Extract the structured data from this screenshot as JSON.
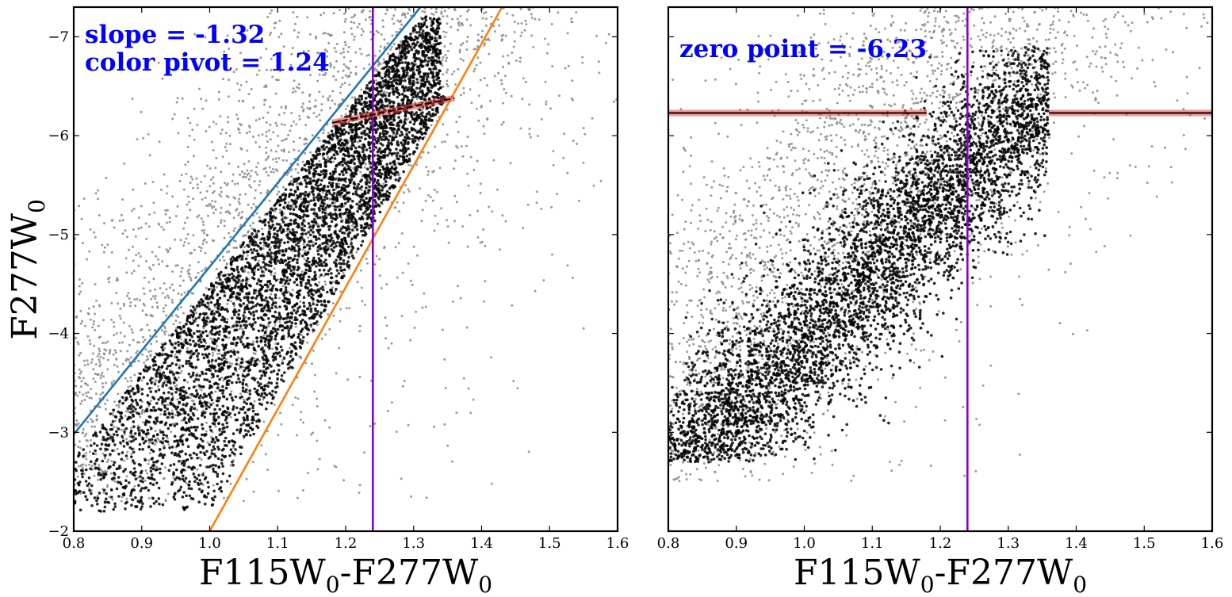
{
  "chart_data": [
    {
      "type": "scatter",
      "panel": "left",
      "xlabel_parts": {
        "a": "F115W",
        "a_sub": "0",
        "dash": "-",
        "b": "F277W",
        "b_sub": "0"
      },
      "ylabel_parts": {
        "main": "F277W",
        "sub": "0"
      },
      "xlim": [
        0.8,
        1.6
      ],
      "ylim": [
        -2.0,
        -7.3
      ],
      "xticks": [
        "0.8",
        "0.9",
        "1.0",
        "1.1",
        "1.2",
        "1.3",
        "1.4",
        "1.5",
        "1.6"
      ],
      "yticks": [
        "−2",
        "−3",
        "−4",
        "−5",
        "−6",
        "−7"
      ],
      "ytick_values": [
        -2,
        -3,
        -4,
        -5,
        -6,
        -7
      ],
      "annotations": [
        "slope = -1.32",
        "color pivot = 1.24"
      ],
      "slope": -1.32,
      "color_pivot": 1.24,
      "lines": [
        {
          "name": "blue boundary",
          "x": [
            0.8,
            1.31
          ],
          "y": [
            -2.98,
            -7.3
          ],
          "color": "#1f77b4"
        },
        {
          "name": "orange boundary",
          "x": [
            1.0,
            1.43
          ],
          "y": [
            -2.0,
            -7.3
          ],
          "color": "#ff7f0e"
        },
        {
          "name": "pivot line",
          "x": [
            1.24,
            1.24
          ],
          "y": [
            -2.0,
            -7.3
          ],
          "color": "#8800cc"
        },
        {
          "name": "tip fit",
          "x": [
            1.18,
            1.36
          ],
          "y": [
            -6.13,
            -6.38
          ],
          "color": "#000000",
          "band_color": "#f04040"
        }
      ],
      "series": [
        {
          "name": "all stars",
          "color": "#808080",
          "distribution": "broad field around the diagonal band"
        },
        {
          "name": "selected stars",
          "color": "#000000",
          "distribution": "dense diagonal band between the blue and orange boundaries"
        }
      ]
    },
    {
      "type": "scatter",
      "panel": "right",
      "xlabel_parts": {
        "a": "F115W",
        "a_sub": "0",
        "dash": "-",
        "b": "F277W",
        "b_sub": "0"
      },
      "xlim": [
        0.8,
        1.6
      ],
      "ylim": [
        -2.0,
        -7.3
      ],
      "xticks": [
        "0.8",
        "0.9",
        "1.0",
        "1.1",
        "1.2",
        "1.3",
        "1.4",
        "1.5",
        "1.6"
      ],
      "annotations": [
        "zero point = -6.23"
      ],
      "zero_point": -6.23,
      "lines": [
        {
          "name": "pivot line",
          "x": [
            1.24,
            1.24
          ],
          "y": [
            -2.0,
            -7.3
          ],
          "color": "#8800cc"
        },
        {
          "name": "zero point left",
          "x": [
            0.8,
            1.18
          ],
          "y": [
            -6.23,
            -6.23
          ],
          "color": "#000000",
          "band_color": "#f04040"
        },
        {
          "name": "zero point right",
          "x": [
            1.36,
            1.6
          ],
          "y": [
            -6.23,
            -6.23
          ],
          "color": "#000000",
          "band_color": "#f04040"
        }
      ],
      "series": [
        {
          "name": "all stars",
          "color": "#808080",
          "distribution": "sloped band with scattered field"
        },
        {
          "name": "rectified stars",
          "color": "#000000",
          "distribution": "dense sloped band from bottom-left to upper-right"
        }
      ]
    }
  ]
}
